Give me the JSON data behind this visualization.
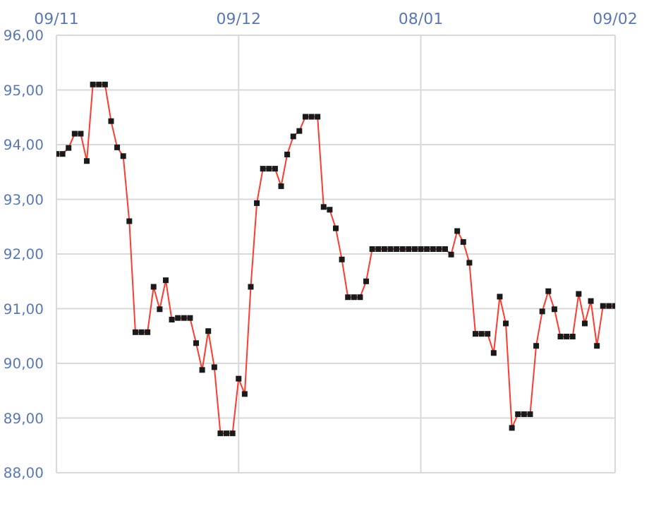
{
  "chart_data": {
    "type": "line",
    "categories": [
      "09/11",
      null,
      null,
      null,
      null,
      null,
      null,
      null,
      null,
      null,
      null,
      null,
      null,
      null,
      null,
      null,
      null,
      null,
      null,
      null,
      null,
      null,
      null,
      null,
      null,
      null,
      null,
      null,
      null,
      null,
      "09/12",
      null,
      null,
      null,
      null,
      null,
      null,
      null,
      null,
      null,
      null,
      null,
      null,
      null,
      null,
      null,
      null,
      null,
      null,
      null,
      null,
      null,
      null,
      null,
      null,
      null,
      null,
      null,
      null,
      null,
      "08/01",
      null,
      null,
      null,
      null,
      null,
      null,
      null,
      null,
      null,
      null,
      null,
      null,
      null,
      null,
      null,
      null,
      null,
      null,
      null,
      null,
      null,
      null,
      null,
      null,
      null,
      null,
      null,
      null,
      null,
      null,
      null,
      "09/02"
    ],
    "series": [
      {
        "color": "#ff3b2f",
        "values": [
          93.83,
          93.83,
          93.94,
          94.2,
          94.2,
          93.7,
          95.1,
          95.1,
          95.1,
          94.43,
          93.95,
          93.79,
          92.6,
          90.57,
          90.57,
          90.57,
          91.4,
          90.99,
          91.52,
          90.8,
          90.83,
          90.83,
          90.83,
          90.37,
          89.88,
          90.59,
          89.93,
          88.72,
          88.72,
          88.72,
          89.72,
          89.44,
          91.4,
          92.93,
          93.56,
          93.56,
          93.56,
          93.24,
          93.82,
          94.15,
          94.25,
          94.51,
          94.51,
          94.51,
          92.86,
          92.81,
          92.47,
          91.9,
          91.21,
          91.21,
          91.21,
          91.5,
          92.09,
          92.09,
          92.09,
          92.09,
          92.09,
          92.09,
          92.09,
          92.09,
          92.09,
          92.09,
          92.09,
          92.09,
          92.09,
          91.99,
          92.42,
          92.22,
          91.84,
          90.54,
          90.54,
          90.54,
          90.19,
          91.22,
          90.73,
          88.82,
          89.07,
          89.07,
          89.07,
          90.32,
          90.95,
          91.32,
          90.99,
          90.49,
          90.49,
          90.49,
          91.27,
          90.73,
          91.14,
          90.32,
          91.05,
          91.05,
          91.05
        ]
      }
    ],
    "ylim": [
      88,
      96
    ],
    "yticks": [
      {
        "value": 88,
        "label": "88,00"
      },
      {
        "value": 89,
        "label": "89,00"
      },
      {
        "value": 90,
        "label": "90,00"
      },
      {
        "value": 91,
        "label": "91,00"
      },
      {
        "value": 92,
        "label": "92,00"
      },
      {
        "value": 93,
        "label": "93,00"
      },
      {
        "value": 94,
        "label": "94,00"
      },
      {
        "value": 95,
        "label": "95,00"
      },
      {
        "value": 96,
        "label": "96,00"
      }
    ],
    "grid": true,
    "legend": false,
    "marker": "square",
    "line_style": "solid"
  }
}
